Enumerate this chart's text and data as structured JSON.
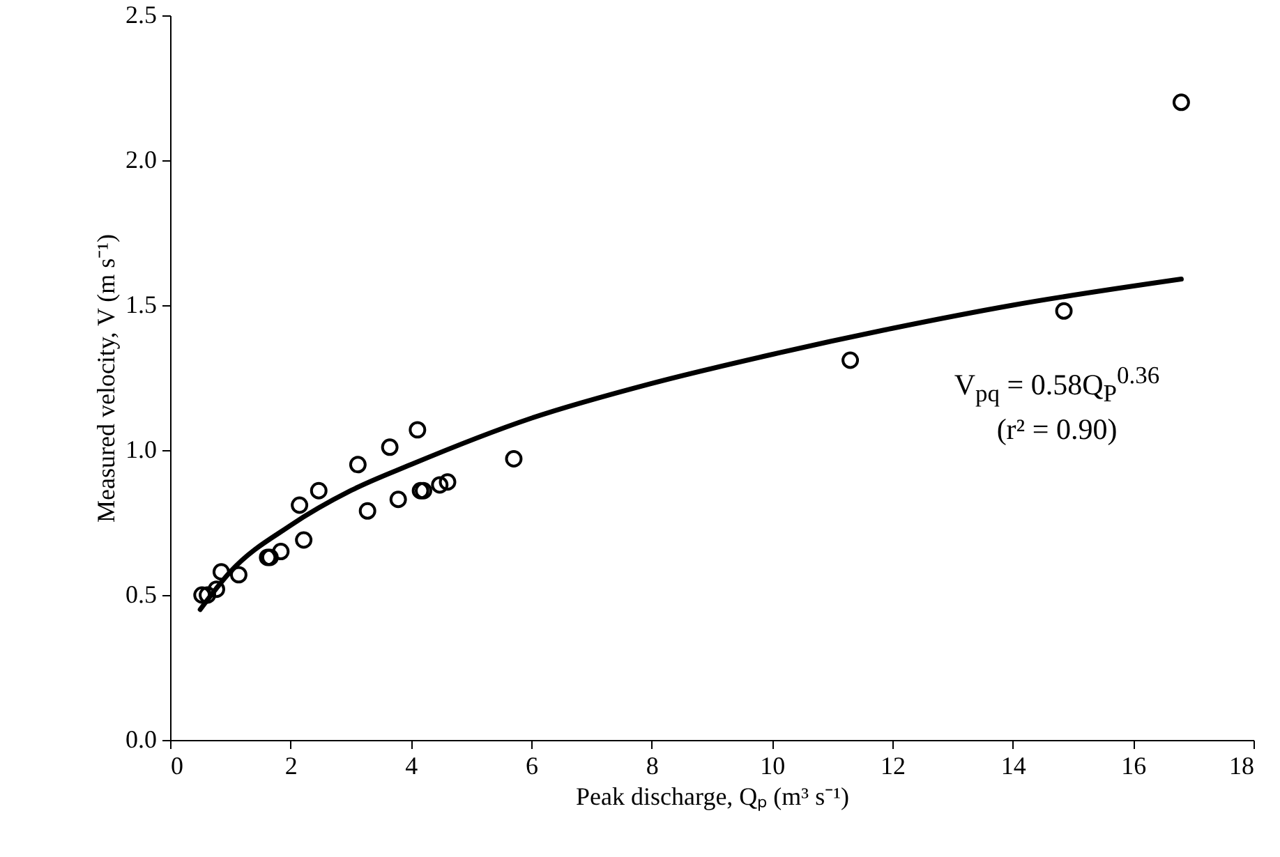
{
  "chart_data": {
    "type": "scatter",
    "xlabel": "Peak discharge, Qₚ (m³ s⁻¹)",
    "ylabel": "Measured velocity, V (m s⁻¹)",
    "xlim": [
      0,
      18
    ],
    "xticks": [
      0,
      2,
      4,
      6,
      8,
      10,
      12,
      14,
      16,
      18
    ],
    "ylim": [
      0,
      2.5
    ],
    "yticks": [
      {
        "value": 0,
        "label": "0.0"
      },
      {
        "value": 0.5,
        "label": "0.5"
      },
      {
        "value": 1,
        "label": "1.0"
      },
      {
        "value": 1.5,
        "label": "1.5"
      },
      {
        "value": 2,
        "label": "2.0"
      },
      {
        "value": 2.5,
        "label": "2.5"
      }
    ],
    "grid": false,
    "annotations": [
      "V$_{pq}$ = 0.58Q$_{P}$$^{0.36}$",
      "(r² = 0.90)"
    ],
    "series": [
      {
        "marker": "circle",
        "color": "#000000",
        "x": [
          0.53,
          0.62,
          0.77,
          0.85,
          1.14,
          1.62,
          1.66,
          1.84,
          2.15,
          2.22,
          2.47,
          3.12,
          3.28,
          3.65,
          3.79,
          4.11,
          4.16,
          4.21,
          4.48,
          4.61,
          5.71,
          11.3,
          14.85,
          16.8
        ],
        "values": [
          0.5,
          0.5,
          0.52,
          0.58,
          0.57,
          0.63,
          0.63,
          0.65,
          0.81,
          0.69,
          0.86,
          0.95,
          0.79,
          1.01,
          0.83,
          1.07,
          0.86,
          0.86,
          0.88,
          0.89,
          0.97,
          1.31,
          1.48,
          2.2
        ]
      },
      {
        "type": "line",
        "marker": "none",
        "color": "#000000",
        "line_style": "solid",
        "x": [
          0.5,
          1,
          2,
          3,
          4,
          6,
          8,
          10,
          12,
          14,
          16.8
        ],
        "values": [
          0.45,
          0.58,
          0.74,
          0.86,
          0.95,
          1.11,
          1.23,
          1.33,
          1.42,
          1.5,
          1.59
        ]
      }
    ]
  }
}
